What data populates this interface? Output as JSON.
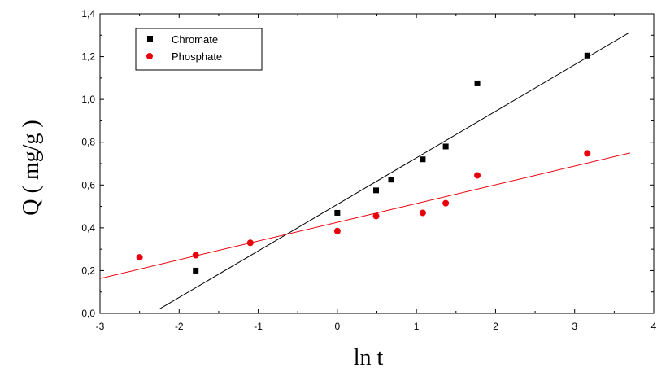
{
  "chart_data": {
    "type": "scatter",
    "title": "",
    "xlabel": "ln t",
    "ylabel": "Q ( mg/g )",
    "xlim": [
      -3,
      4
    ],
    "ylim": [
      0.0,
      1.4
    ],
    "x_ticks": [
      "-3",
      "-2",
      "-1",
      "0",
      "1",
      "2",
      "3",
      "4"
    ],
    "y_ticks": [
      "0,0",
      "0,2",
      "0,4",
      "0,6",
      "0,8",
      "1,0",
      "1,2",
      "1,4"
    ],
    "grid": false,
    "legend_position": "top-left",
    "series": [
      {
        "name": "Chromate",
        "marker": "square",
        "color": "#000000",
        "points": [
          {
            "x": -1.79,
            "y": 0.2
          },
          {
            "x": 0.0,
            "y": 0.47
          },
          {
            "x": 0.49,
            "y": 0.575
          },
          {
            "x": 0.68,
            "y": 0.625
          },
          {
            "x": 1.08,
            "y": 0.72
          },
          {
            "x": 1.37,
            "y": 0.78
          },
          {
            "x": 1.77,
            "y": 1.075
          },
          {
            "x": 3.16,
            "y": 1.205
          }
        ],
        "fit_line": {
          "x": [
            -2.25,
            3.68
          ],
          "y": [
            0.02,
            1.31
          ]
        }
      },
      {
        "name": "Phosphate",
        "marker": "circle",
        "color": "#e8000b",
        "points": [
          {
            "x": -2.5,
            "y": 0.262
          },
          {
            "x": -1.79,
            "y": 0.272
          },
          {
            "x": -1.1,
            "y": 0.33
          },
          {
            "x": 0.0,
            "y": 0.385
          },
          {
            "x": 0.49,
            "y": 0.455
          },
          {
            "x": 1.08,
            "y": 0.47
          },
          {
            "x": 1.37,
            "y": 0.515
          },
          {
            "x": 1.77,
            "y": 0.645
          },
          {
            "x": 3.16,
            "y": 0.748
          }
        ],
        "fit_line": {
          "x": [
            -3.0,
            3.7
          ],
          "y": [
            0.163,
            0.75
          ]
        }
      }
    ]
  }
}
